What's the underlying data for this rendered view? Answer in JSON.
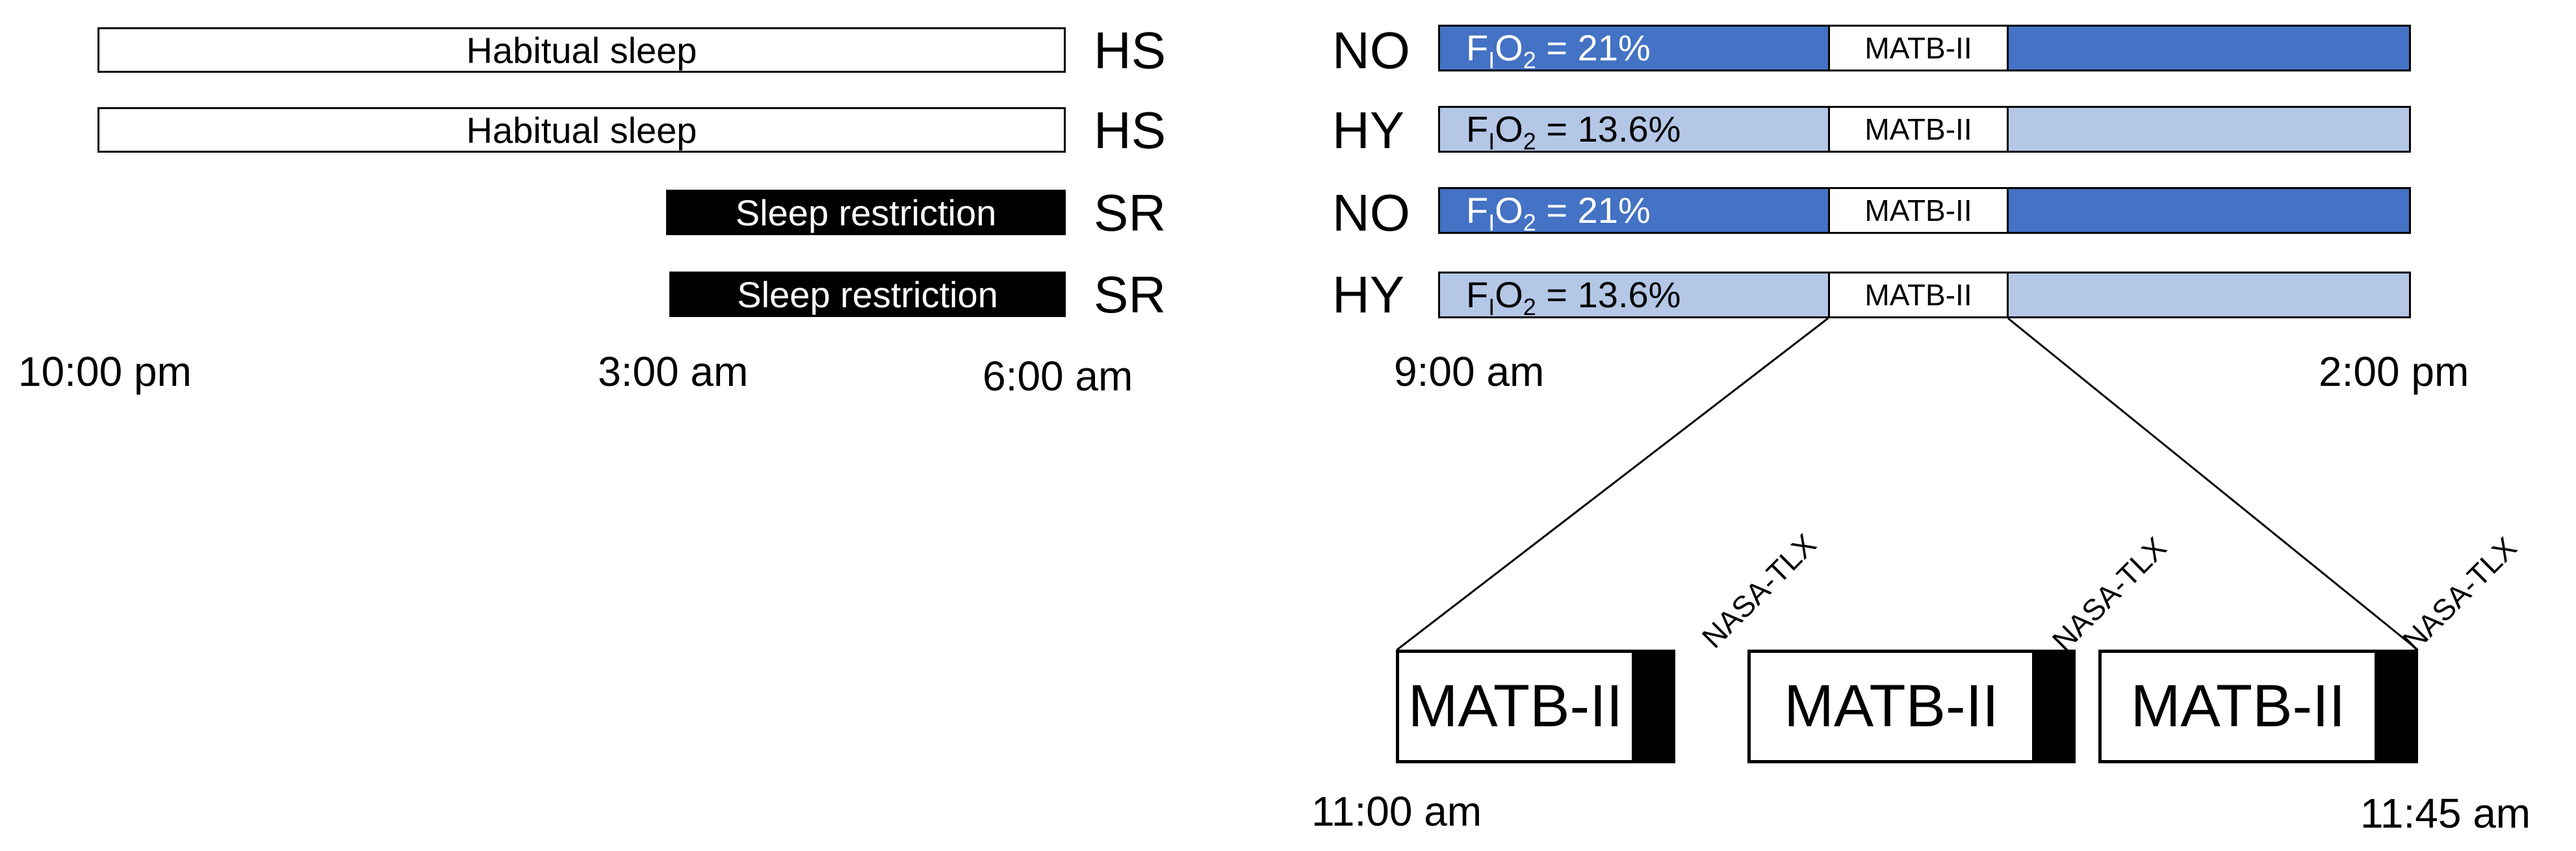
{
  "sleep_rows": [
    {
      "label": "Habitual sleep",
      "code": "HS",
      "type": "habitual"
    },
    {
      "label": "Habitual sleep",
      "code": "HS",
      "type": "habitual"
    },
    {
      "label": "Sleep restriction",
      "code": "SR",
      "type": "restricted"
    },
    {
      "label": "Sleep restriction",
      "code": "SR",
      "type": "restricted"
    }
  ],
  "exposure_rows": [
    {
      "code": "NO",
      "fio2_prefix": "F",
      "fio2_sub_i": "I",
      "fio2_o": "O",
      "fio2_sub_2": "2",
      "fio2_value": " = 21%",
      "task": "MATB-II",
      "condition": "normoxia"
    },
    {
      "code": "HY",
      "fio2_prefix": "F",
      "fio2_sub_i": "I",
      "fio2_o": "O",
      "fio2_sub_2": "2",
      "fio2_value": " = 13.6%",
      "task": "MATB-II",
      "condition": "hypoxia"
    },
    {
      "code": "NO",
      "fio2_prefix": "F",
      "fio2_sub_i": "I",
      "fio2_o": "O",
      "fio2_sub_2": "2",
      "fio2_value": " = 21%",
      "task": "MATB-II",
      "condition": "normoxia"
    },
    {
      "code": "HY",
      "fio2_prefix": "F",
      "fio2_sub_i": "I",
      "fio2_o": "O",
      "fio2_sub_2": "2",
      "fio2_value": " = 13.6%",
      "task": "MATB-II",
      "condition": "hypoxia"
    }
  ],
  "night_times": [
    "10:00 pm",
    "3:00 am",
    "6:00 am"
  ],
  "day_times": [
    "9:00 am",
    "2:00 pm"
  ],
  "detail_times": [
    "11:00 am",
    "11:45 am"
  ],
  "matb_blocks": [
    {
      "label": "MATB-II",
      "questionnaire": "NASA-TLX"
    },
    {
      "label": "MATB-II",
      "questionnaire": "NASA-TLX"
    },
    {
      "label": "MATB-II",
      "questionnaire": "NASA-TLX"
    }
  ],
  "colors": {
    "normoxia": "#4472C4",
    "hypoxia": "#B4C7E7",
    "sleep_restriction": "#000000",
    "habitual_sleep": "#FFFFFF"
  }
}
